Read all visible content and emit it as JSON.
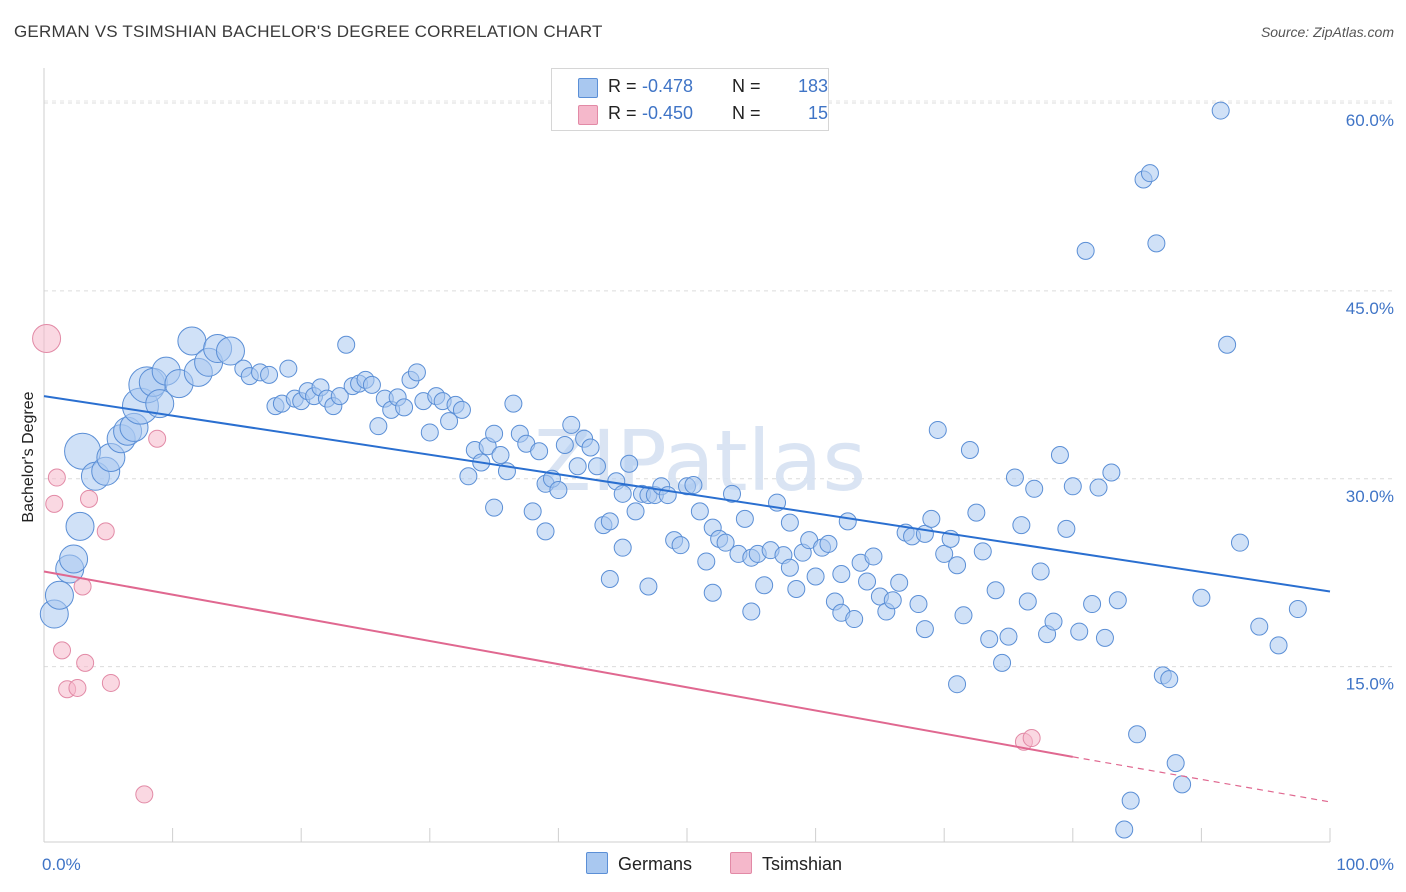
{
  "title": "GERMAN VS TSIMSHIAN BACHELOR'S DEGREE CORRELATION CHART",
  "source": "Source: ZipAtlas.com",
  "watermark": "ZIPatlas",
  "colors": {
    "blue_fill": "#a9c8f0",
    "blue_stroke": "#5b8fd6",
    "blue_line": "#2a6fd0",
    "pink_fill": "#f5b8cb",
    "pink_stroke": "#e28aa6",
    "pink_line": "#e06890",
    "axis_text": "#3f74c6"
  },
  "legend": {
    "rows": [
      {
        "r_label": "R =",
        "r_value": "-0.478",
        "n_label": "N =",
        "n_value": "183",
        "swatch": "#a9c8f0"
      },
      {
        "r_label": "R =",
        "r_value": "-0.450",
        "n_label": "N =",
        "n_value": "15",
        "swatch": "#f5b8cb"
      }
    ]
  },
  "bottom_legend": {
    "germans": "Germans",
    "tsimshian": "Tsimshian"
  },
  "chart_data": {
    "type": "scatter",
    "title": "GERMAN VS TSIMSHIAN BACHELOR'S DEGREE CORRELATION CHART",
    "xlabel": "",
    "ylabel": "Bachelor's Degree",
    "xlim": [
      0,
      100
    ],
    "ylim": [
      1,
      62
    ],
    "x_tick_labels": [
      "0.0%",
      "100.0%"
    ],
    "y_ticks": [
      15,
      30,
      45,
      60
    ],
    "y_tick_labels": [
      "15.0%",
      "30.0%",
      "45.0%",
      "60.0%"
    ],
    "grid": true,
    "legend_position": "top-center",
    "series": [
      {
        "name": "Germans",
        "r": -0.478,
        "n": 183,
        "trend": {
          "x0": 0,
          "y0": 36.6,
          "x1": 100,
          "y1": 21.0
        },
        "points": [
          [
            0.8,
            19.2,
            2
          ],
          [
            1.2,
            20.7,
            2
          ],
          [
            2.0,
            22.8,
            2
          ],
          [
            2.3,
            23.6,
            2
          ],
          [
            2.8,
            26.2,
            2
          ],
          [
            3.0,
            32.2,
            3
          ],
          [
            4.0,
            30.2,
            2
          ],
          [
            4.8,
            30.6,
            2
          ],
          [
            5.2,
            31.7,
            2
          ],
          [
            6.0,
            33.2,
            2
          ],
          [
            6.5,
            33.8,
            2
          ],
          [
            7.0,
            34.1,
            2
          ],
          [
            7.5,
            35.8,
            3
          ],
          [
            8.0,
            37.5,
            3
          ],
          [
            8.5,
            37.7,
            2
          ],
          [
            9.0,
            36.0,
            2
          ],
          [
            9.5,
            38.6,
            2
          ],
          [
            10.5,
            37.6,
            2
          ],
          [
            11.5,
            41.0,
            2
          ],
          [
            12.0,
            38.5,
            2
          ],
          [
            12.8,
            39.3,
            2
          ],
          [
            13.5,
            40.4,
            2
          ],
          [
            14.5,
            40.2,
            2
          ],
          [
            15.5,
            38.8,
            1
          ],
          [
            16.0,
            38.2,
            1
          ],
          [
            16.8,
            38.5,
            1
          ],
          [
            17.5,
            38.3,
            1
          ],
          [
            18.0,
            35.8,
            1
          ],
          [
            18.5,
            36.0,
            1
          ],
          [
            19.0,
            38.8,
            1
          ],
          [
            19.5,
            36.4,
            1
          ],
          [
            20.0,
            36.2,
            1
          ],
          [
            20.5,
            37.0,
            1
          ],
          [
            21.0,
            36.6,
            1
          ],
          [
            21.5,
            37.3,
            1
          ],
          [
            22.0,
            36.4,
            1
          ],
          [
            22.5,
            35.8,
            1
          ],
          [
            23.0,
            36.6,
            1
          ],
          [
            23.5,
            40.7,
            1
          ],
          [
            24.0,
            37.4,
            1
          ],
          [
            24.5,
            37.6,
            1
          ],
          [
            25.0,
            37.9,
            1
          ],
          [
            25.5,
            37.5,
            1
          ],
          [
            26.0,
            34.2,
            1
          ],
          [
            26.5,
            36.4,
            1
          ],
          [
            27.0,
            35.5,
            1
          ],
          [
            27.5,
            36.5,
            1
          ],
          [
            28.0,
            35.7,
            1
          ],
          [
            28.5,
            37.9,
            1
          ],
          [
            29.0,
            38.5,
            1
          ],
          [
            29.5,
            36.2,
            1
          ],
          [
            30.0,
            33.7,
            1
          ],
          [
            30.5,
            36.6,
            1
          ],
          [
            31.0,
            36.2,
            1
          ],
          [
            31.5,
            34.6,
            1
          ],
          [
            32.0,
            35.9,
            1
          ],
          [
            32.5,
            35.5,
            1
          ],
          [
            33.0,
            30.2,
            1
          ],
          [
            33.5,
            32.3,
            1
          ],
          [
            34.0,
            31.3,
            1
          ],
          [
            34.5,
            32.6,
            1
          ],
          [
            35.0,
            33.6,
            1
          ],
          [
            35.5,
            31.9,
            1
          ],
          [
            36.0,
            30.6,
            1
          ],
          [
            36.5,
            36.0,
            1
          ],
          [
            37.0,
            33.6,
            1
          ],
          [
            37.5,
            32.8,
            1
          ],
          [
            38.0,
            27.4,
            1
          ],
          [
            38.5,
            32.2,
            1
          ],
          [
            39.0,
            29.6,
            1
          ],
          [
            39.5,
            30.0,
            1
          ],
          [
            40.0,
            29.1,
            1
          ],
          [
            40.5,
            32.7,
            1
          ],
          [
            41.0,
            34.3,
            1
          ],
          [
            41.5,
            31.0,
            1
          ],
          [
            42.0,
            33.2,
            1
          ],
          [
            42.5,
            32.5,
            1
          ],
          [
            43.0,
            31.0,
            1
          ],
          [
            43.5,
            26.3,
            1
          ],
          [
            44.0,
            26.6,
            1
          ],
          [
            44.5,
            29.8,
            1
          ],
          [
            45.0,
            28.8,
            1
          ],
          [
            45.5,
            31.2,
            1
          ],
          [
            46.0,
            27.4,
            1
          ],
          [
            46.5,
            28.8,
            1
          ],
          [
            47.0,
            28.7,
            1
          ],
          [
            47.5,
            28.7,
            1
          ],
          [
            48.0,
            29.4,
            1
          ],
          [
            48.5,
            28.7,
            1
          ],
          [
            49.0,
            25.1,
            1
          ],
          [
            49.5,
            24.7,
            1
          ],
          [
            50.0,
            29.4,
            1
          ],
          [
            50.5,
            29.5,
            1
          ],
          [
            51.0,
            27.4,
            1
          ],
          [
            51.5,
            23.4,
            1
          ],
          [
            52.0,
            26.1,
            1
          ],
          [
            52.5,
            25.2,
            1
          ],
          [
            53.0,
            24.9,
            1
          ],
          [
            53.5,
            28.8,
            1
          ],
          [
            54.0,
            24.0,
            1
          ],
          [
            54.5,
            26.8,
            1
          ],
          [
            55.0,
            23.7,
            1
          ],
          [
            55.5,
            24.0,
            1
          ],
          [
            56.0,
            21.5,
            1
          ],
          [
            56.5,
            24.3,
            1
          ],
          [
            57.0,
            28.1,
            1
          ],
          [
            57.5,
            23.9,
            1
          ],
          [
            58.0,
            22.9,
            1
          ],
          [
            58.5,
            21.2,
            1
          ],
          [
            59.0,
            24.1,
            1
          ],
          [
            59.5,
            25.1,
            1
          ],
          [
            60.0,
            22.2,
            1
          ],
          [
            60.5,
            24.5,
            1
          ],
          [
            61.0,
            24.8,
            1
          ],
          [
            61.5,
            20.2,
            1
          ],
          [
            62.0,
            19.3,
            1
          ],
          [
            62.5,
            26.6,
            1
          ],
          [
            63.0,
            18.8,
            1
          ],
          [
            63.5,
            23.3,
            1
          ],
          [
            64.0,
            21.8,
            1
          ],
          [
            64.5,
            23.8,
            1
          ],
          [
            65.0,
            20.6,
            1
          ],
          [
            65.5,
            19.4,
            1
          ],
          [
            66.0,
            20.3,
            1
          ],
          [
            66.5,
            21.7,
            1
          ],
          [
            67.0,
            25.7,
            1
          ],
          [
            67.5,
            25.4,
            1
          ],
          [
            68.0,
            20.0,
            1
          ],
          [
            68.5,
            25.6,
            1
          ],
          [
            69.0,
            26.8,
            1
          ],
          [
            69.5,
            33.9,
            1
          ],
          [
            70.0,
            24.0,
            1
          ],
          [
            70.5,
            25.2,
            1
          ],
          [
            71.0,
            23.1,
            1
          ],
          [
            71.5,
            19.1,
            1
          ],
          [
            72.0,
            32.3,
            1
          ],
          [
            72.5,
            27.3,
            1
          ],
          [
            73.0,
            24.2,
            1
          ],
          [
            73.5,
            17.2,
            1
          ],
          [
            74.0,
            21.1,
            1
          ],
          [
            74.5,
            15.3,
            1
          ],
          [
            75.0,
            17.4,
            1
          ],
          [
            75.5,
            30.1,
            1
          ],
          [
            76.0,
            26.3,
            1
          ],
          [
            76.5,
            20.2,
            1
          ],
          [
            77.0,
            29.2,
            1
          ],
          [
            77.5,
            22.6,
            1
          ],
          [
            78.0,
            17.6,
            1
          ],
          [
            78.5,
            18.6,
            1
          ],
          [
            79.0,
            31.9,
            1
          ],
          [
            79.5,
            26.0,
            1
          ],
          [
            80.0,
            29.4,
            1
          ],
          [
            80.5,
            17.8,
            1
          ],
          [
            81.0,
            48.2,
            1
          ],
          [
            81.5,
            20.0,
            1
          ],
          [
            82.0,
            29.3,
            1
          ],
          [
            82.5,
            17.3,
            1
          ],
          [
            83.0,
            30.5,
            1
          ],
          [
            83.5,
            20.3,
            1
          ],
          [
            84.0,
            2.0,
            1
          ],
          [
            84.5,
            4.3,
            1
          ],
          [
            85.0,
            9.6,
            1
          ],
          [
            85.5,
            53.9,
            1
          ],
          [
            86.0,
            54.4,
            1
          ],
          [
            86.5,
            48.8,
            1
          ],
          [
            87.0,
            14.3,
            1
          ],
          [
            87.5,
            14.0,
            1
          ],
          [
            88.0,
            7.3,
            1
          ],
          [
            88.5,
            5.6,
            1
          ],
          [
            90.0,
            20.5,
            1
          ],
          [
            91.5,
            59.4,
            1
          ],
          [
            92.0,
            40.7,
            1
          ],
          [
            93.0,
            24.9,
            1
          ],
          [
            94.5,
            18.2,
            1
          ],
          [
            96.0,
            16.7,
            1
          ],
          [
            97.5,
            19.6,
            1
          ],
          [
            58.0,
            26.5,
            1
          ],
          [
            45.0,
            24.5,
            1
          ],
          [
            39.0,
            25.8,
            1
          ],
          [
            35.0,
            27.7,
            1
          ],
          [
            44.0,
            22.0,
            1
          ],
          [
            52.0,
            20.9,
            1
          ],
          [
            47.0,
            21.4,
            1
          ],
          [
            55.0,
            19.4,
            1
          ],
          [
            62.0,
            22.4,
            1
          ],
          [
            68.5,
            18.0,
            1
          ],
          [
            71.0,
            13.6,
            1
          ]
        ]
      },
      {
        "name": "Tsimshian",
        "r": -0.45,
        "n": 15,
        "trend": {
          "x0": 0,
          "y0": 22.6,
          "x1": 80,
          "y1": 7.8
        },
        "trend_dashed": {
          "x0": 80,
          "y0": 7.8,
          "x1": 100,
          "y1": 4.2
        },
        "points": [
          [
            0.2,
            41.2,
            2
          ],
          [
            0.8,
            28.0,
            1
          ],
          [
            1.0,
            30.1,
            1
          ],
          [
            1.4,
            16.3,
            1
          ],
          [
            1.8,
            13.2,
            1
          ],
          [
            2.6,
            13.3,
            1
          ],
          [
            3.0,
            21.4,
            1
          ],
          [
            3.2,
            15.3,
            1
          ],
          [
            3.5,
            28.4,
            1
          ],
          [
            4.8,
            25.8,
            1
          ],
          [
            5.2,
            13.7,
            1
          ],
          [
            7.8,
            4.8,
            1
          ],
          [
            8.8,
            33.2,
            1
          ],
          [
            76.2,
            9.0,
            1
          ],
          [
            76.8,
            9.3,
            1
          ]
        ]
      }
    ]
  }
}
